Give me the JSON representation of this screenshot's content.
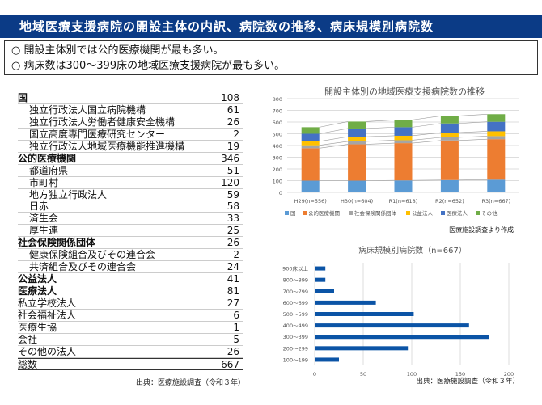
{
  "header": {
    "title": "地域医療支援病院の開設主体の内訳、病院数の推移、病床規模別病院数"
  },
  "summary": [
    "○ 開設主体別では公的医療機関が最も多い。",
    "○ 病床数は300～399床の地域医療支援病院が最も多い。"
  ],
  "table": {
    "rows": [
      {
        "label": "国",
        "value": "108",
        "style": "b"
      },
      {
        "label": "独立行政法人国立病院機構",
        "value": "61",
        "style": "i"
      },
      {
        "label": "独立行政法人労働者健康安全機構",
        "value": "26",
        "style": "i"
      },
      {
        "label": "国立高度専門医療研究センター",
        "value": "2",
        "style": "i"
      },
      {
        "label": "独立行政法人地域医療機能推進機構",
        "value": "19",
        "style": "i"
      },
      {
        "label": "公的医療機関",
        "value": "346",
        "style": "b"
      },
      {
        "label": "都道府県",
        "value": "51",
        "style": "i"
      },
      {
        "label": "市町村",
        "value": "120",
        "style": "i"
      },
      {
        "label": "地方独立行政法人",
        "value": "59",
        "style": "i"
      },
      {
        "label": "日赤",
        "value": "58",
        "style": "i"
      },
      {
        "label": "済生会",
        "value": "33",
        "style": "i"
      },
      {
        "label": "厚生連",
        "value": "25",
        "style": "i"
      },
      {
        "label": "社会保険関係団体",
        "value": "26",
        "style": "b"
      },
      {
        "label": "健康保険組合及びその連合会",
        "value": "2",
        "style": "i"
      },
      {
        "label": "共済組合及びその連合会",
        "value": "24",
        "style": "i"
      },
      {
        "label": "公益法人",
        "value": "41",
        "style": "b"
      },
      {
        "label": "医療法人",
        "value": "81",
        "style": "b"
      },
      {
        "label": "私立学校法人",
        "value": "27",
        "style": ""
      },
      {
        "label": "社会福祉法人",
        "value": "6",
        "style": ""
      },
      {
        "label": "医療生協",
        "value": "1",
        "style": ""
      },
      {
        "label": "会社",
        "value": "5",
        "style": ""
      },
      {
        "label": "その他の法人",
        "value": "26",
        "style": ""
      },
      {
        "label": "総数",
        "value": "667",
        "style": "total"
      }
    ],
    "source": "出典：医療施設調査（令和３年）"
  },
  "chart_data": [
    {
      "type": "bar",
      "stacked": true,
      "title": "開設主体別の地域医療支援病院数の推移",
      "categories": [
        "H29(n=556)",
        "H30(n=604)",
        "R1(n=618)",
        "R2(n=652)",
        "R3(n=667)"
      ],
      "series": [
        {
          "name": "国",
          "color": "#5b9bd5",
          "values": [
            100,
            100,
            102,
            105,
            108
          ]
        },
        {
          "name": "公的医療機関",
          "color": "#ed7d31",
          "values": [
            277,
            310,
            318,
            338,
            346
          ]
        },
        {
          "name": "社会保険関係団体",
          "color": "#a5a5a5",
          "values": [
            25,
            25,
            25,
            26,
            26
          ]
        },
        {
          "name": "公益法人",
          "color": "#ffc000",
          "values": [
            33,
            40,
            38,
            41,
            41
          ]
        },
        {
          "name": "医療法人",
          "color": "#4472c4",
          "values": [
            65,
            70,
            73,
            78,
            81
          ]
        },
        {
          "name": "その他",
          "color": "#70ad47",
          "values": [
            56,
            59,
            62,
            64,
            65
          ]
        }
      ],
      "ylim": [
        0,
        800
      ],
      "yticks": [
        0,
        100,
        200,
        300,
        400,
        500,
        600,
        700,
        800
      ],
      "legend": "bottom",
      "grid": true,
      "note": "医療施設調査より作成"
    },
    {
      "type": "bar",
      "orientation": "horizontal",
      "title": "病床規模別病院数（n=667）",
      "categories": [
        "900床以上",
        "800～899",
        "700～799",
        "600～699",
        "500～599",
        "400～499",
        "300～399",
        "200～299",
        "100～199"
      ],
      "values": [
        11,
        11,
        20,
        63,
        102,
        159,
        180,
        96,
        25
      ],
      "color": "#0b54a6",
      "xlim": [
        0,
        200
      ],
      "xticks": [
        0,
        50,
        100,
        150,
        200
      ],
      "grid": true,
      "source": "出典：医療施設調査（令和３年）"
    }
  ]
}
